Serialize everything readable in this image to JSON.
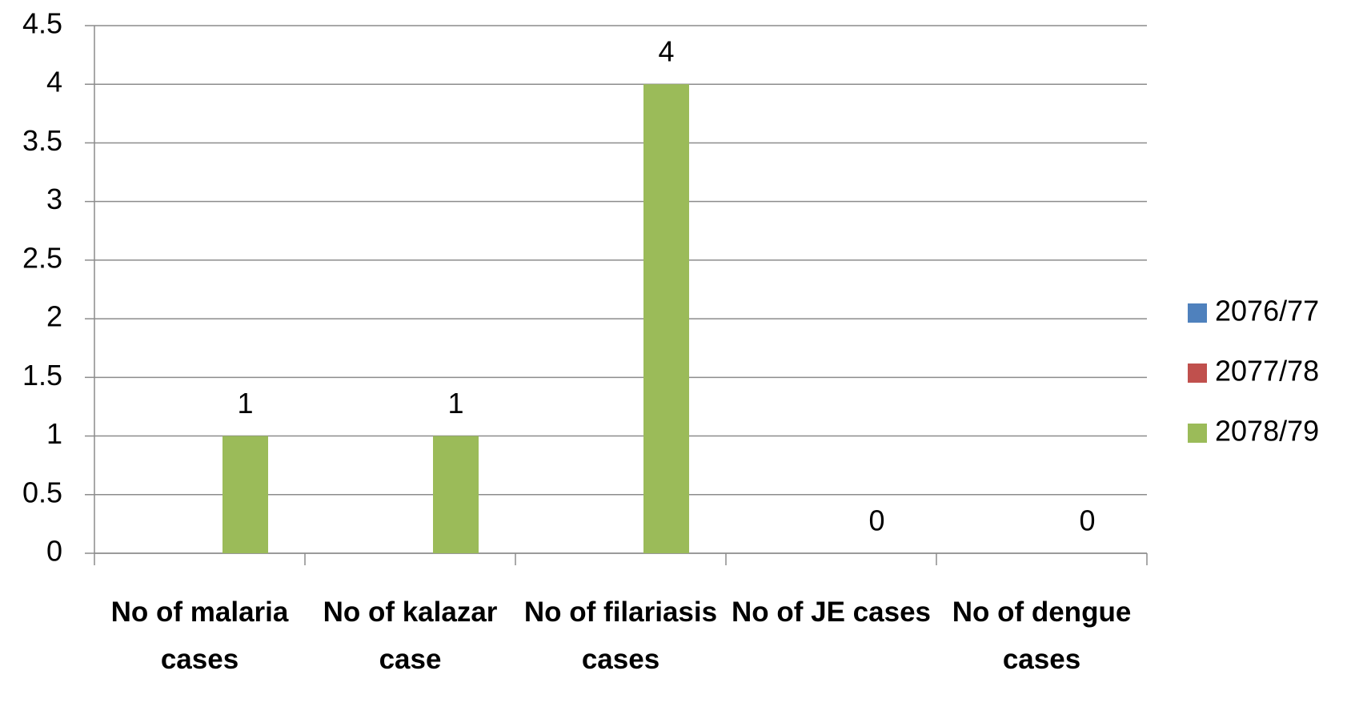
{
  "chart_data": {
    "type": "bar",
    "categories": [
      "No of malaria cases",
      "No of kalazar case",
      "No of filariasis cases",
      "No of JE cases",
      "No of dengue cases"
    ],
    "series": [
      {
        "name": "2076/77",
        "color": "#4f81bd",
        "values": [
          null,
          null,
          null,
          null,
          null
        ]
      },
      {
        "name": "2077/78",
        "color": "#c0504d",
        "values": [
          null,
          null,
          null,
          null,
          null
        ]
      },
      {
        "name": "2078/79",
        "color": "#9bbb59",
        "values": [
          1,
          1,
          4,
          0,
          0
        ]
      }
    ],
    "ylim": [
      0,
      4.5
    ],
    "yticks": [
      0,
      0.5,
      1,
      1.5,
      2,
      2.5,
      3,
      3.5,
      4,
      4.5
    ],
    "grid": true,
    "legend": "right"
  }
}
